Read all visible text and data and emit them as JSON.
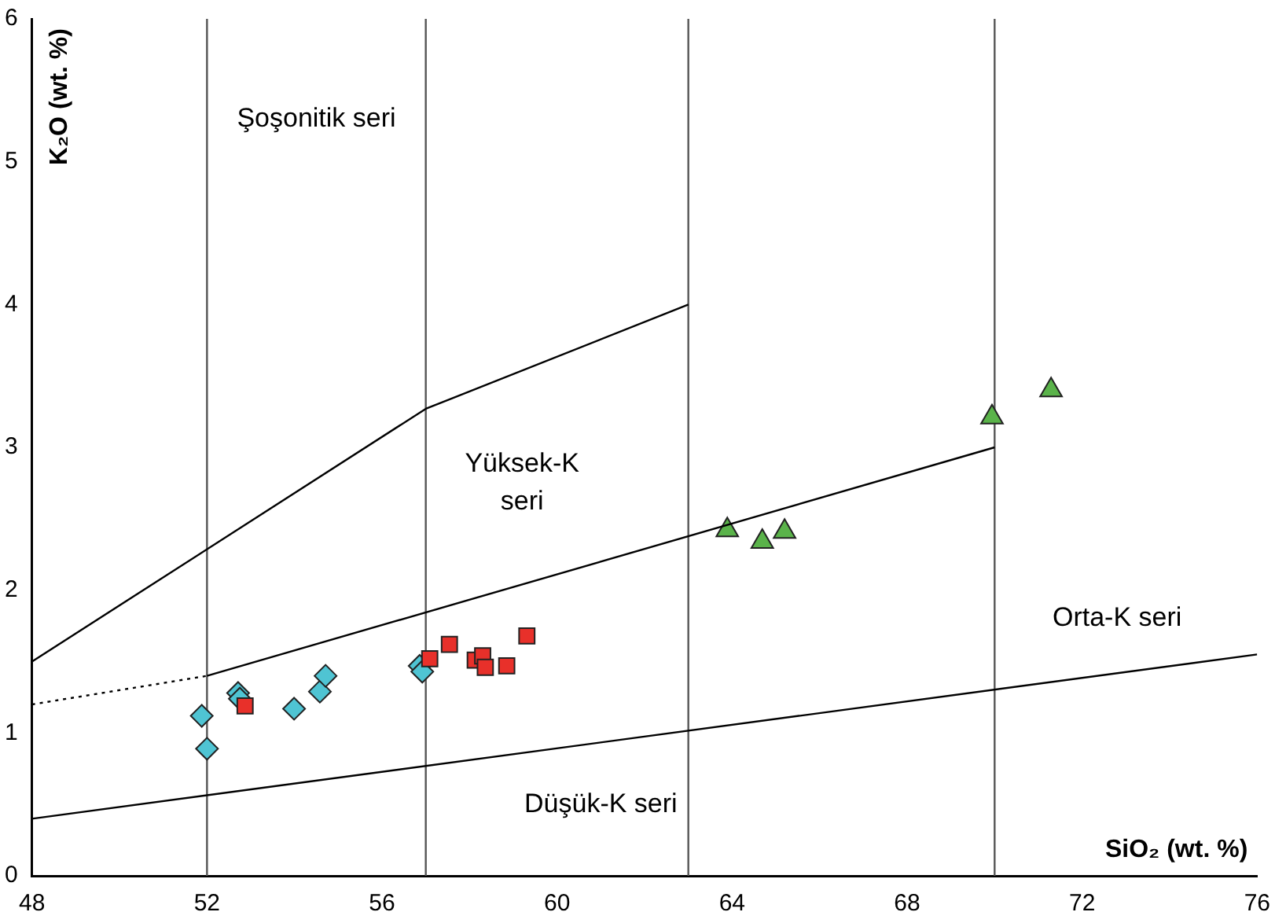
{
  "chart_data": {
    "type": "scatter",
    "xlabel": "SiO₂ (wt. %)",
    "ylabel": "K₂O (wt. %)",
    "xlim": [
      48,
      76
    ],
    "xticks": [
      48,
      52,
      56,
      60,
      64,
      68,
      72,
      76
    ],
    "ylim": [
      0,
      6
    ],
    "yticks": [
      0,
      1,
      2,
      3,
      4,
      5,
      6
    ],
    "grid": false,
    "legend": false,
    "series": [
      {
        "type": "line",
        "color": "#000000",
        "marker": "none",
        "line_style": "solid",
        "x": [
          48,
          57,
          63
        ],
        "values": [
          1.5,
          3.27,
          4.0
        ]
      },
      {
        "type": "line",
        "color": "#000000",
        "marker": "none",
        "line_style": "dotted",
        "x": [
          48,
          52
        ],
        "values": [
          1.2,
          1.4
        ]
      },
      {
        "type": "line",
        "color": "#000000",
        "marker": "none",
        "line_style": "solid",
        "x": [
          52,
          70
        ],
        "values": [
          1.4,
          3.0
        ]
      },
      {
        "type": "line",
        "color": "#000000",
        "marker": "none",
        "line_style": "solid",
        "x": [
          48,
          76
        ],
        "values": [
          0.4,
          1.55
        ]
      },
      {
        "type": "scatter",
        "color": "#e8302a",
        "marker": "square",
        "x": [
          52.87,
          57.09,
          57.54,
          58.13,
          58.3,
          58.36,
          58.85,
          59.31
        ],
        "values": [
          1.19,
          1.52,
          1.62,
          1.51,
          1.54,
          1.46,
          1.47,
          1.68
        ]
      },
      {
        "type": "scatter",
        "color": "#4fc4d3",
        "marker": "diamond",
        "x": [
          51.88,
          52.0,
          52.71,
          52.75,
          53.99,
          54.58,
          54.71,
          56.86,
          56.92
        ],
        "values": [
          1.12,
          0.89,
          1.28,
          1.24,
          1.17,
          1.29,
          1.4,
          1.47,
          1.43
        ]
      },
      {
        "type": "scatter",
        "color": "#5ab34a",
        "marker": "triangle",
        "x": [
          63.89,
          64.69,
          65.2,
          69.94,
          71.29
        ],
        "values": [
          2.42,
          2.34,
          2.41,
          3.21,
          3.4
        ]
      }
    ],
    "ref_lines": [
      {
        "axis": "x",
        "value": 52,
        "color": "#555555"
      },
      {
        "axis": "x",
        "value": 57,
        "color": "#555555"
      },
      {
        "axis": "x",
        "value": 63,
        "color": "#555555"
      },
      {
        "axis": "x",
        "value": 70,
        "color": "#555555"
      }
    ],
    "annotations": [
      "Şoşonitik seri",
      "Yüksek-K seri",
      "Orta-K seri",
      "Düşük-K seri"
    ]
  }
}
